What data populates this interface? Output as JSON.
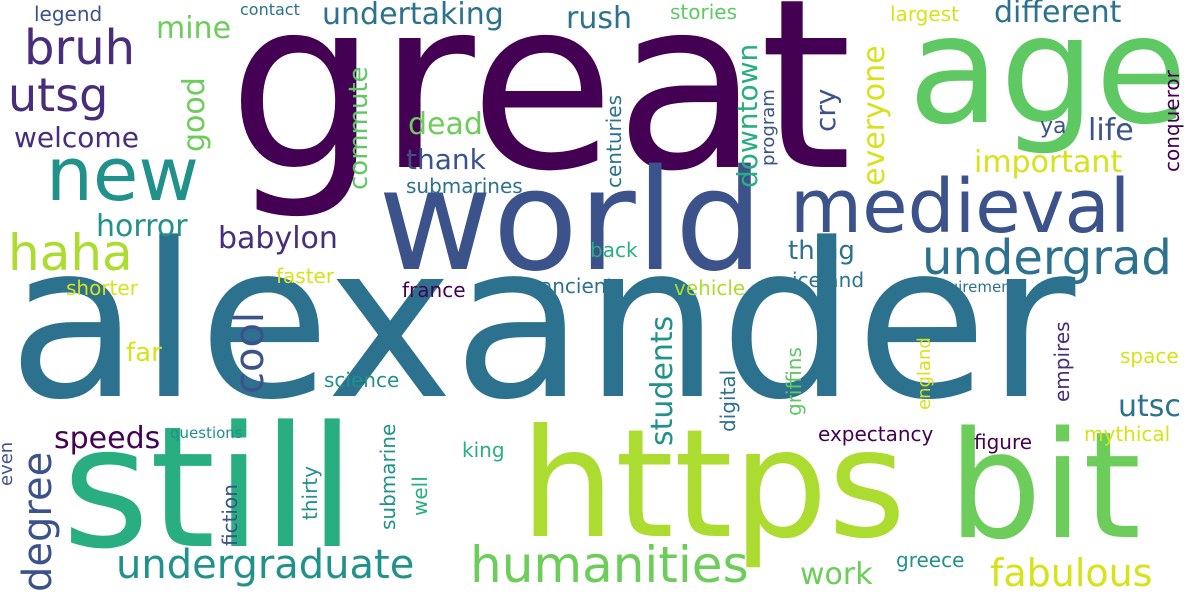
{
  "cloud": {
    "words": {
      "alexander": "alexander",
      "great": "great",
      "world": "world",
      "age": "age",
      "still": "still",
      "https": "https",
      "bit": "bit",
      "new": "new",
      "medieval": "medieval",
      "undergrad": "undergrad",
      "haha": "haha",
      "bruh": "bruh",
      "utsg": "utsg",
      "humanities": "humanities",
      "undergraduate": "undergraduate",
      "fabulous": "fabulous",
      "degree": "degree",
      "cool": "cool",
      "babylon": "babylon",
      "different": "different",
      "undertaking": "undertaking",
      "rush": "rush",
      "mine": "mine",
      "dead": "dead",
      "thank": "thank",
      "important": "important",
      "life": "life",
      "ya": "ya",
      "everyone": "everyone",
      "cry": "cry",
      "downtown": "downtown",
      "commute": "commute",
      "good": "good",
      "welcome": "welcome",
      "horror": "horror",
      "submarines": "submarines",
      "centuries": "centuries",
      "program": "program",
      "conqueror": "conqueror",
      "largest": "largest",
      "stories": "stories",
      "contact": "contact",
      "legend": "legend",
      "thing": "thing",
      "back": "back",
      "faster": "faster",
      "shorter": "shorter",
      "iceland": "iceland",
      "requirements": "requirements",
      "france": "france",
      "ancient": "ancient",
      "vehicle": "vehicle",
      "students": "students",
      "far": "far",
      "science": "science",
      "speeds": "speeds",
      "questions": "questions",
      "king": "king",
      "griffins": "griffins",
      "digital": "digital",
      "england": "england",
      "empires": "empires",
      "space": "space",
      "utsc": "utsc",
      "expectancy": "expectancy",
      "figure": "figure",
      "mythical": "mythical",
      "work": "work",
      "greece": "greece",
      "even": "even",
      "fiction": "fiction",
      "thirty": "thirty",
      "submarine": "submarine",
      "well": "well"
    }
  }
}
